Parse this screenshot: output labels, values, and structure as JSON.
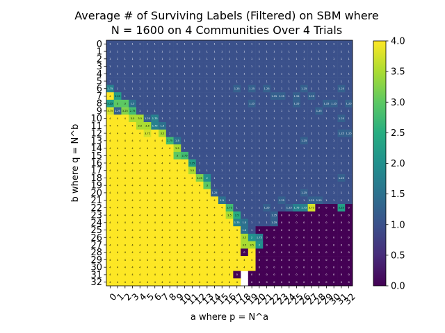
{
  "chart_data": {
    "type": "heatmap",
    "title_lines": [
      "Average # of Surviving Labels (Filtered) on SBM where",
      "N = 1600 on 4 Communities Over 4 Trials"
    ],
    "xlabel": "a where p = N^a",
    "ylabel": "b where q = N^b",
    "x_categories": [
      "0",
      "1",
      "2",
      "3",
      "4",
      "5",
      "6",
      "7",
      "8",
      "9",
      "10",
      "11",
      "12",
      "13",
      "14",
      "15",
      "16",
      "17",
      "18",
      "19",
      "20",
      "21",
      "22",
      "23",
      "24",
      "25",
      "26",
      "27",
      "28",
      "29",
      "30",
      "31",
      "32"
    ],
    "y_categories": [
      "0",
      "1",
      "2",
      "3",
      "4",
      "5",
      "6",
      "7",
      "8",
      "9",
      "10",
      "11",
      "12",
      "13",
      "14",
      "15",
      "16",
      "17",
      "18",
      "19",
      "20",
      "21",
      "22",
      "23",
      "24",
      "25",
      "26",
      "27",
      "28",
      "29",
      "30",
      "31",
      "32"
    ],
    "colorscale": "viridis",
    "value_range": [
      0.0,
      4.0
    ],
    "colorbar_ticks": [
      "0.0",
      "0.5",
      "1.0",
      "1.5",
      "2.0",
      "2.5",
      "3.0",
      "3.5",
      "4.0"
    ],
    "missing_cells_note": "cells where a > b are blank",
    "values": [
      [
        1.0,
        1.0,
        1.0,
        1.0,
        1.0,
        1.0,
        1.0,
        1.0,
        1.0,
        1.0,
        1.0,
        1.0,
        1.0,
        1.0,
        1.0,
        1.0,
        1.0,
        1.0,
        1.0,
        1.0,
        1.0,
        1.0,
        1.0,
        1.0,
        1.0,
        1.0,
        1.0,
        1.0,
        1.0,
        1.0,
        1.0,
        1.0,
        1.0
      ],
      [
        1.0,
        1.0,
        1.0,
        1.0,
        1.0,
        1.0,
        1.0,
        1.0,
        1.0,
        1.0,
        1.0,
        1.0,
        1.0,
        1.0,
        1.0,
        1.0,
        1.0,
        1.0,
        1.0,
        1.0,
        1.0,
        1.0,
        1.0,
        1.0,
        1.0,
        1.0,
        1.0,
        1.0,
        1.0,
        1.0,
        1.0,
        1.0,
        1.0
      ],
      [
        1.0,
        1.0,
        1.0,
        1.0,
        1.0,
        1.0,
        1.0,
        1.0,
        1.0,
        1.0,
        1.0,
        1.0,
        1.0,
        1.0,
        1.0,
        1.0,
        1.0,
        1.0,
        1.0,
        1.0,
        1.0,
        1.0,
        1.0,
        1.0,
        1.0,
        1.0,
        1.0,
        1.0,
        1.0,
        1.0,
        1.0,
        1.0,
        1.0
      ],
      [
        1.0,
        1.0,
        1.0,
        1.0,
        1.0,
        1.0,
        1.0,
        1.0,
        1.0,
        1.0,
        1.0,
        1.0,
        1.0,
        1.0,
        1.0,
        1.0,
        1.0,
        1.0,
        1.0,
        1.0,
        1.0,
        1.0,
        1.0,
        1.0,
        1.0,
        1.0,
        1.0,
        1.0,
        1.0,
        1.0,
        1.0,
        1.0,
        1.0
      ],
      [
        1.0,
        1.0,
        1.0,
        1.0,
        1.0,
        1.0,
        1.0,
        1.0,
        1.0,
        1.0,
        1.0,
        1.0,
        1.0,
        1.0,
        1.0,
        1.0,
        1.0,
        1.0,
        1.0,
        1.0,
        1.0,
        1.0,
        1.0,
        1.0,
        1.0,
        1.0,
        1.0,
        1.0,
        1.0,
        1.0,
        1.0,
        1.0,
        1.0
      ],
      [
        1.0,
        1.0,
        1.0,
        1.0,
        1.0,
        1.0,
        1.0,
        1.0,
        1.0,
        1.0,
        1.0,
        1.0,
        1.0,
        1.0,
        1.0,
        1.0,
        1.0,
        1.0,
        1.0,
        1.0,
        1.0,
        1.0,
        1.0,
        1.0,
        1.0,
        1.0,
        1.0,
        1.0,
        1.0,
        1.0,
        1.0,
        1.0,
        1.0
      ],
      [
        1.75,
        1.0,
        1.0,
        1.0,
        1.0,
        1.0,
        1.0,
        1.0,
        1.0,
        1.0,
        1.0,
        1.0,
        1.0,
        1.0,
        1.0,
        1.0,
        1.0,
        1.25,
        1.0,
        1.25,
        1.0,
        1.25,
        1.0,
        1.0,
        1.0,
        1.0,
        1.25,
        1.0,
        1.0,
        1.0,
        1.0,
        1.25,
        1.0
      ],
      [
        4.0,
        2.25,
        1.0,
        1.0,
        1.0,
        1.0,
        1.0,
        1.0,
        1.0,
        1.0,
        1.0,
        1.0,
        1.0,
        1.0,
        1.0,
        1.0,
        1.0,
        1.0,
        1.0,
        1.0,
        1.0,
        1.0,
        1.25,
        1.25,
        1.0,
        1.25,
        1.0,
        1.25,
        1.0,
        1.0,
        1.0,
        1.0,
        1.0
      ],
      [
        2.25,
        3.0,
        3.0,
        1.5,
        1.0,
        1.0,
        1.0,
        1.0,
        1.0,
        1.0,
        1.0,
        1.0,
        1.0,
        1.0,
        1.0,
        1.0,
        1.0,
        1.0,
        1.0,
        1.25,
        1.0,
        1.0,
        1.0,
        1.0,
        1.0,
        1.25,
        1.0,
        1.0,
        1.0,
        1.25,
        1.25,
        1.0,
        1.25
      ],
      [
        3.75,
        1.25,
        3.25,
        2.75,
        1.0,
        1.0,
        1.0,
        1.0,
        1.0,
        1.0,
        1.0,
        1.0,
        1.0,
        1.0,
        1.0,
        1.0,
        1.0,
        1.0,
        1.0,
        1.0,
        1.0,
        1.0,
        1.0,
        1.0,
        1.0,
        1.0,
        1.0,
        1.0,
        1.25,
        1.0,
        1.0,
        1.0,
        1.0
      ],
      [
        4.0,
        4.0,
        4.0,
        3.5,
        3.5,
        1.25,
        1.75,
        1.0,
        1.0,
        1.0,
        1.0,
        1.0,
        1.0,
        1.0,
        1.0,
        1.0,
        1.0,
        1.0,
        1.0,
        1.0,
        1.0,
        1.0,
        1.0,
        1.0,
        1.0,
        1.0,
        1.0,
        1.0,
        1.0,
        1.0,
        1.0,
        1.25,
        1.0
      ],
      [
        4.0,
        4.0,
        4.0,
        4.0,
        3.5,
        3.5,
        1.75,
        1.5,
        1.0,
        1.0,
        1.0,
        1.0,
        1.0,
        1.0,
        1.0,
        1.0,
        1.0,
        1.0,
        1.0,
        1.0,
        1.0,
        1.0,
        1.0,
        1.0,
        1.0,
        1.0,
        1.0,
        1.0,
        1.0,
        1.0,
        1.0,
        1.0,
        1.0
      ],
      [
        4.0,
        4.0,
        4.0,
        4.0,
        4.0,
        3.75,
        4.0,
        3.5,
        1.0,
        1.0,
        1.0,
        1.0,
        1.0,
        1.0,
        1.0,
        1.0,
        1.0,
        1.0,
        1.0,
        1.0,
        1.0,
        1.0,
        1.0,
        1.0,
        1.0,
        1.0,
        1.0,
        1.0,
        1.0,
        1.0,
        1.0,
        1.25,
        1.25
      ],
      [
        4.0,
        4.0,
        4.0,
        4.0,
        4.0,
        4.0,
        4.0,
        4.0,
        2.75,
        1.5,
        1.0,
        1.0,
        1.0,
        1.0,
        1.0,
        1.0,
        1.0,
        1.0,
        1.0,
        1.0,
        1.0,
        1.0,
        1.0,
        1.0,
        1.0,
        1.0,
        1.25,
        1.0,
        1.0,
        1.0,
        1.0,
        1.0,
        1.0
      ],
      [
        4.0,
        4.0,
        4.0,
        4.0,
        4.0,
        4.0,
        4.0,
        4.0,
        4.0,
        3.5,
        1.0,
        1.0,
        1.0,
        1.0,
        1.0,
        1.0,
        1.0,
        1.0,
        1.0,
        1.0,
        1.0,
        1.0,
        1.0,
        1.0,
        1.0,
        1.0,
        1.0,
        1.0,
        1.0,
        1.0,
        1.0,
        1.0,
        1.0
      ],
      [
        4.0,
        4.0,
        4.0,
        4.0,
        4.0,
        4.0,
        4.0,
        4.0,
        4.0,
        3.0,
        2.75,
        1.0,
        1.0,
        1.0,
        1.0,
        1.0,
        1.0,
        1.0,
        1.0,
        1.0,
        1.0,
        1.0,
        1.0,
        1.0,
        1.0,
        1.0,
        1.0,
        1.0,
        1.0,
        1.0,
        1.0,
        1.0,
        1.0
      ],
      [
        4.0,
        4.0,
        4.0,
        4.0,
        4.0,
        4.0,
        4.0,
        4.0,
        4.0,
        4.0,
        4.0,
        2.25,
        1.0,
        1.0,
        1.0,
        1.0,
        1.0,
        1.0,
        1.0,
        1.0,
        1.0,
        1.0,
        1.0,
        1.0,
        1.0,
        1.0,
        1.0,
        1.0,
        1.0,
        1.0,
        1.0,
        1.0,
        1.0
      ],
      [
        4.0,
        4.0,
        4.0,
        4.0,
        4.0,
        4.0,
        4.0,
        4.0,
        4.0,
        4.0,
        4.0,
        3.5,
        1.0,
        1.0,
        1.0,
        1.0,
        1.0,
        1.0,
        1.0,
        1.0,
        1.0,
        1.0,
        1.0,
        1.0,
        1.0,
        1.0,
        1.0,
        1.0,
        1.0,
        1.0,
        1.0,
        1.0,
        1.0
      ],
      [
        4.0,
        4.0,
        4.0,
        4.0,
        4.0,
        4.0,
        4.0,
        4.0,
        4.0,
        4.0,
        4.0,
        4.0,
        3.25,
        2.0,
        1.0,
        1.0,
        1.0,
        1.0,
        1.0,
        1.0,
        1.0,
        1.0,
        1.0,
        1.0,
        1.0,
        1.0,
        1.0,
        1.0,
        1.0,
        1.0,
        1.0,
        1.25,
        1.0
      ],
      [
        4.0,
        4.0,
        4.0,
        4.0,
        4.0,
        4.0,
        4.0,
        4.0,
        4.0,
        4.0,
        4.0,
        4.0,
        4.0,
        3.0,
        1.0,
        1.0,
        1.0,
        1.0,
        1.0,
        1.0,
        1.0,
        1.0,
        1.0,
        1.0,
        1.0,
        1.0,
        1.0,
        1.0,
        1.0,
        1.0,
        1.0,
        1.0,
        1.0
      ],
      [
        4.0,
        4.0,
        4.0,
        4.0,
        4.0,
        4.0,
        4.0,
        4.0,
        4.0,
        4.0,
        4.0,
        4.0,
        4.0,
        4.0,
        1.25,
        1.0,
        1.0,
        1.0,
        1.0,
        1.0,
        1.0,
        1.0,
        1.0,
        1.0,
        1.0,
        1.0,
        1.25,
        1.0,
        1.0,
        1.0,
        1.0,
        1.0,
        1.0
      ],
      [
        4.0,
        4.0,
        4.0,
        4.0,
        4.0,
        4.0,
        4.0,
        4.0,
        4.0,
        4.0,
        4.0,
        4.0,
        4.0,
        4.0,
        4.0,
        1.5,
        1.0,
        1.0,
        1.0,
        1.0,
        1.0,
        1.0,
        1.0,
        1.25,
        1.0,
        1.0,
        1.0,
        1.25,
        1.25,
        1.0,
        1.0,
        1.0,
        1.0
      ],
      [
        4.0,
        4.0,
        4.0,
        4.0,
        4.0,
        4.0,
        4.0,
        4.0,
        4.0,
        4.0,
        4.0,
        4.0,
        4.0,
        4.0,
        4.0,
        4.0,
        2.75,
        1.0,
        1.0,
        1.0,
        1.0,
        1.25,
        1.0,
        1.0,
        1.25,
        1.75,
        1.75,
        3.75,
        0.0,
        0.0,
        0.0,
        2.25,
        0.0
      ],
      [
        4.0,
        4.0,
        4.0,
        4.0,
        4.0,
        4.0,
        4.0,
        4.0,
        4.0,
        4.0,
        4.0,
        4.0,
        4.0,
        4.0,
        4.0,
        4.0,
        3.5,
        2.5,
        1.0,
        1.0,
        1.0,
        1.0,
        1.25,
        0.0,
        0.0,
        0.0,
        0.0,
        0.0,
        0.0,
        0.0,
        0.0,
        0.0,
        0.0
      ],
      [
        4.0,
        4.0,
        4.0,
        4.0,
        4.0,
        4.0,
        4.0,
        4.0,
        4.0,
        4.0,
        4.0,
        4.0,
        4.0,
        4.0,
        4.0,
        4.0,
        4.0,
        1.75,
        1.5,
        1.0,
        1.0,
        1.0,
        1.25,
        0.0,
        0.0,
        0.0,
        0.0,
        0.0,
        0.0,
        0.0,
        0.0,
        0.0,
        0.0
      ],
      [
        4.0,
        4.0,
        4.0,
        4.0,
        4.0,
        4.0,
        4.0,
        4.0,
        4.0,
        4.0,
        4.0,
        4.0,
        4.0,
        4.0,
        4.0,
        4.0,
        4.0,
        4.0,
        1.5,
        1.0,
        0.0,
        0.0,
        0.0,
        0.0,
        0.0,
        0.0,
        0.0,
        0.0,
        0.0,
        0.0,
        0.0,
        0.0,
        0.0
      ],
      [
        4.0,
        4.0,
        4.0,
        4.0,
        4.0,
        4.0,
        4.0,
        4.0,
        4.0,
        4.0,
        4.0,
        4.0,
        4.0,
        4.0,
        4.0,
        4.0,
        4.0,
        4.0,
        3.5,
        2.0,
        1.75,
        0.0,
        0.0,
        0.0,
        0.0,
        0.0,
        0.0,
        0.0,
        0.0,
        0.0,
        0.0,
        0.0,
        0.0
      ],
      [
        4.0,
        4.0,
        4.0,
        4.0,
        4.0,
        4.0,
        4.0,
        4.0,
        4.0,
        4.0,
        4.0,
        4.0,
        4.0,
        4.0,
        4.0,
        4.0,
        4.0,
        4.0,
        3.5,
        3.5,
        2.0,
        0.0,
        0.0,
        0.0,
        0.0,
        0.0,
        0.0,
        0.0,
        0.0,
        0.0,
        0.0,
        0.0,
        0.0
      ],
      [
        4.0,
        4.0,
        4.0,
        4.0,
        4.0,
        4.0,
        4.0,
        4.0,
        4.0,
        4.0,
        4.0,
        4.0,
        4.0,
        4.0,
        4.0,
        4.0,
        4.0,
        4.0,
        0.0,
        4.0,
        0.0,
        0.0,
        0.0,
        0.0,
        0.0,
        0.0,
        0.0,
        0.0,
        0.0,
        0.0,
        0.0,
        0.0,
        0.0
      ],
      [
        4.0,
        4.0,
        4.0,
        4.0,
        4.0,
        4.0,
        4.0,
        4.0,
        4.0,
        4.0,
        4.0,
        4.0,
        4.0,
        4.0,
        4.0,
        4.0,
        4.0,
        4.0,
        4.0,
        4.0,
        0.0,
        0.0,
        0.0,
        0.0,
        0.0,
        0.0,
        0.0,
        0.0,
        0.0,
        0.0,
        0.0,
        0.0,
        0.0
      ],
      [
        4.0,
        4.0,
        4.0,
        4.0,
        4.0,
        4.0,
        4.0,
        4.0,
        4.0,
        4.0,
        4.0,
        4.0,
        4.0,
        4.0,
        4.0,
        4.0,
        4.0,
        4.0,
        4.0,
        4.0,
        0.0,
        0.0,
        0.0,
        0.0,
        0.0,
        0.0,
        0.0,
        0.0,
        0.0,
        0.0,
        0.0,
        0.0,
        0.0
      ],
      [
        4.0,
        4.0,
        4.0,
        4.0,
        4.0,
        4.0,
        4.0,
        4.0,
        4.0,
        4.0,
        4.0,
        4.0,
        4.0,
        4.0,
        4.0,
        4.0,
        4.0,
        0.0,
        null,
        0.0,
        0.0,
        0.0,
        0.0,
        0.0,
        0.0,
        0.0,
        0.0,
        0.0,
        0.0,
        0.0,
        0.0,
        0.0,
        0.0
      ],
      [
        4.0,
        4.0,
        4.0,
        4.0,
        4.0,
        4.0,
        4.0,
        4.0,
        4.0,
        4.0,
        4.0,
        4.0,
        4.0,
        4.0,
        4.0,
        4.0,
        4.0,
        4.0,
        null,
        0.0,
        0.0,
        0.0,
        0.0,
        0.0,
        0.0,
        0.0,
        0.0,
        0.0,
        0.0,
        0.0,
        0.0,
        0.0,
        0.0
      ]
    ]
  }
}
